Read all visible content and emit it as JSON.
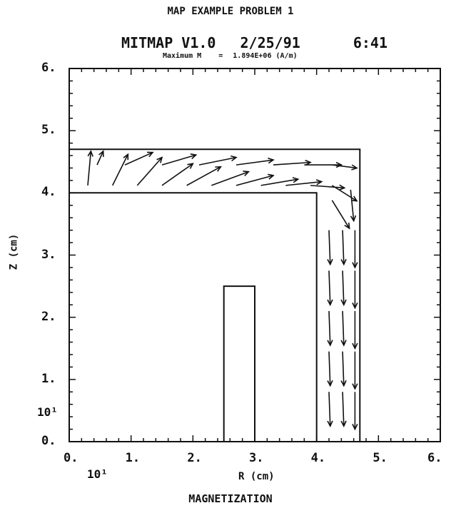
{
  "header": {
    "title": "MAP EXAMPLE PROBLEM 1",
    "program": "MITMAP V1.0",
    "date": "2/25/91",
    "time": "6:41",
    "max_label": "Maximum M",
    "max_value": "1.894E+06 (A/m)"
  },
  "chart_data": {
    "type": "vector-field",
    "title": "MAGNETIZATION",
    "xlabel": "R (cm)",
    "ylabel": "Z (cm)",
    "xlim": [
      0,
      6
    ],
    "ylim": [
      0,
      6
    ],
    "x_ticks": [
      "0.",
      "1.",
      "2.",
      "3.",
      "4.",
      "5.",
      "6."
    ],
    "y_ticks": [
      "0.",
      "1.",
      "2.",
      "3.",
      "4.",
      "5.",
      "6."
    ],
    "scale_markers": [
      "10¹",
      "10¹"
    ],
    "regions": [
      {
        "name": "magnet",
        "points": [
          [
            0,
            4.0
          ],
          [
            4.0,
            4.0
          ],
          [
            4.0,
            0
          ],
          [
            4.7,
            0
          ],
          [
            4.7,
            4.7
          ],
          [
            0,
            4.7
          ]
        ]
      },
      {
        "name": "center-post",
        "points": [
          [
            2.5,
            0
          ],
          [
            3.0,
            0
          ],
          [
            3.0,
            2.5
          ],
          [
            2.5,
            2.5
          ]
        ]
      }
    ],
    "vectors": [
      {
        "x": 0.3,
        "y": 4.12,
        "dx": 0.05,
        "dy": 0.55
      },
      {
        "x": 0.7,
        "y": 4.12,
        "dx": 0.25,
        "dy": 0.5
      },
      {
        "x": 1.1,
        "y": 4.12,
        "dx": 0.4,
        "dy": 0.45
      },
      {
        "x": 1.5,
        "y": 4.12,
        "dx": 0.5,
        "dy": 0.35
      },
      {
        "x": 1.9,
        "y": 4.12,
        "dx": 0.55,
        "dy": 0.3
      },
      {
        "x": 2.3,
        "y": 4.12,
        "dx": 0.6,
        "dy": 0.22
      },
      {
        "x": 2.7,
        "y": 4.12,
        "dx": 0.6,
        "dy": 0.16
      },
      {
        "x": 3.1,
        "y": 4.12,
        "dx": 0.6,
        "dy": 0.1
      },
      {
        "x": 3.5,
        "y": 4.12,
        "dx": 0.58,
        "dy": 0.06
      },
      {
        "x": 3.9,
        "y": 4.12,
        "dx": 0.55,
        "dy": -0.04
      },
      {
        "x": 4.25,
        "y": 4.12,
        "dx": 0.4,
        "dy": -0.25
      },
      {
        "x": 0.45,
        "y": 4.45,
        "dx": 0.1,
        "dy": 0.22
      },
      {
        "x": 0.9,
        "y": 4.45,
        "dx": 0.45,
        "dy": 0.2
      },
      {
        "x": 1.5,
        "y": 4.45,
        "dx": 0.55,
        "dy": 0.16
      },
      {
        "x": 2.1,
        "y": 4.45,
        "dx": 0.6,
        "dy": 0.12
      },
      {
        "x": 2.7,
        "y": 4.45,
        "dx": 0.6,
        "dy": 0.08
      },
      {
        "x": 3.3,
        "y": 4.45,
        "dx": 0.6,
        "dy": 0.04
      },
      {
        "x": 3.8,
        "y": 4.45,
        "dx": 0.6,
        "dy": 0.0
      },
      {
        "x": 4.25,
        "y": 4.45,
        "dx": 0.4,
        "dy": -0.05
      },
      {
        "x": 4.25,
        "y": 3.88,
        "dx": 0.28,
        "dy": -0.45
      },
      {
        "x": 4.55,
        "y": 4.05,
        "dx": 0.05,
        "dy": -0.5
      },
      {
        "x": 4.2,
        "y": 3.4,
        "dx": 0.02,
        "dy": -0.55
      },
      {
        "x": 4.42,
        "y": 3.4,
        "dx": 0.02,
        "dy": -0.55
      },
      {
        "x": 4.62,
        "y": 3.4,
        "dx": 0.0,
        "dy": -0.6
      },
      {
        "x": 4.2,
        "y": 2.75,
        "dx": 0.02,
        "dy": -0.55
      },
      {
        "x": 4.42,
        "y": 2.75,
        "dx": 0.02,
        "dy": -0.55
      },
      {
        "x": 4.62,
        "y": 2.75,
        "dx": 0.0,
        "dy": -0.6
      },
      {
        "x": 4.2,
        "y": 2.1,
        "dx": 0.02,
        "dy": -0.55
      },
      {
        "x": 4.42,
        "y": 2.1,
        "dx": 0.02,
        "dy": -0.55
      },
      {
        "x": 4.62,
        "y": 2.1,
        "dx": 0.0,
        "dy": -0.6
      },
      {
        "x": 4.2,
        "y": 1.45,
        "dx": 0.02,
        "dy": -0.55
      },
      {
        "x": 4.42,
        "y": 1.45,
        "dx": 0.02,
        "dy": -0.55
      },
      {
        "x": 4.62,
        "y": 1.45,
        "dx": 0.0,
        "dy": -0.6
      },
      {
        "x": 4.2,
        "y": 0.8,
        "dx": 0.02,
        "dy": -0.55
      },
      {
        "x": 4.42,
        "y": 0.8,
        "dx": 0.02,
        "dy": -0.55
      },
      {
        "x": 4.62,
        "y": 0.8,
        "dx": 0.0,
        "dy": -0.6
      }
    ]
  }
}
